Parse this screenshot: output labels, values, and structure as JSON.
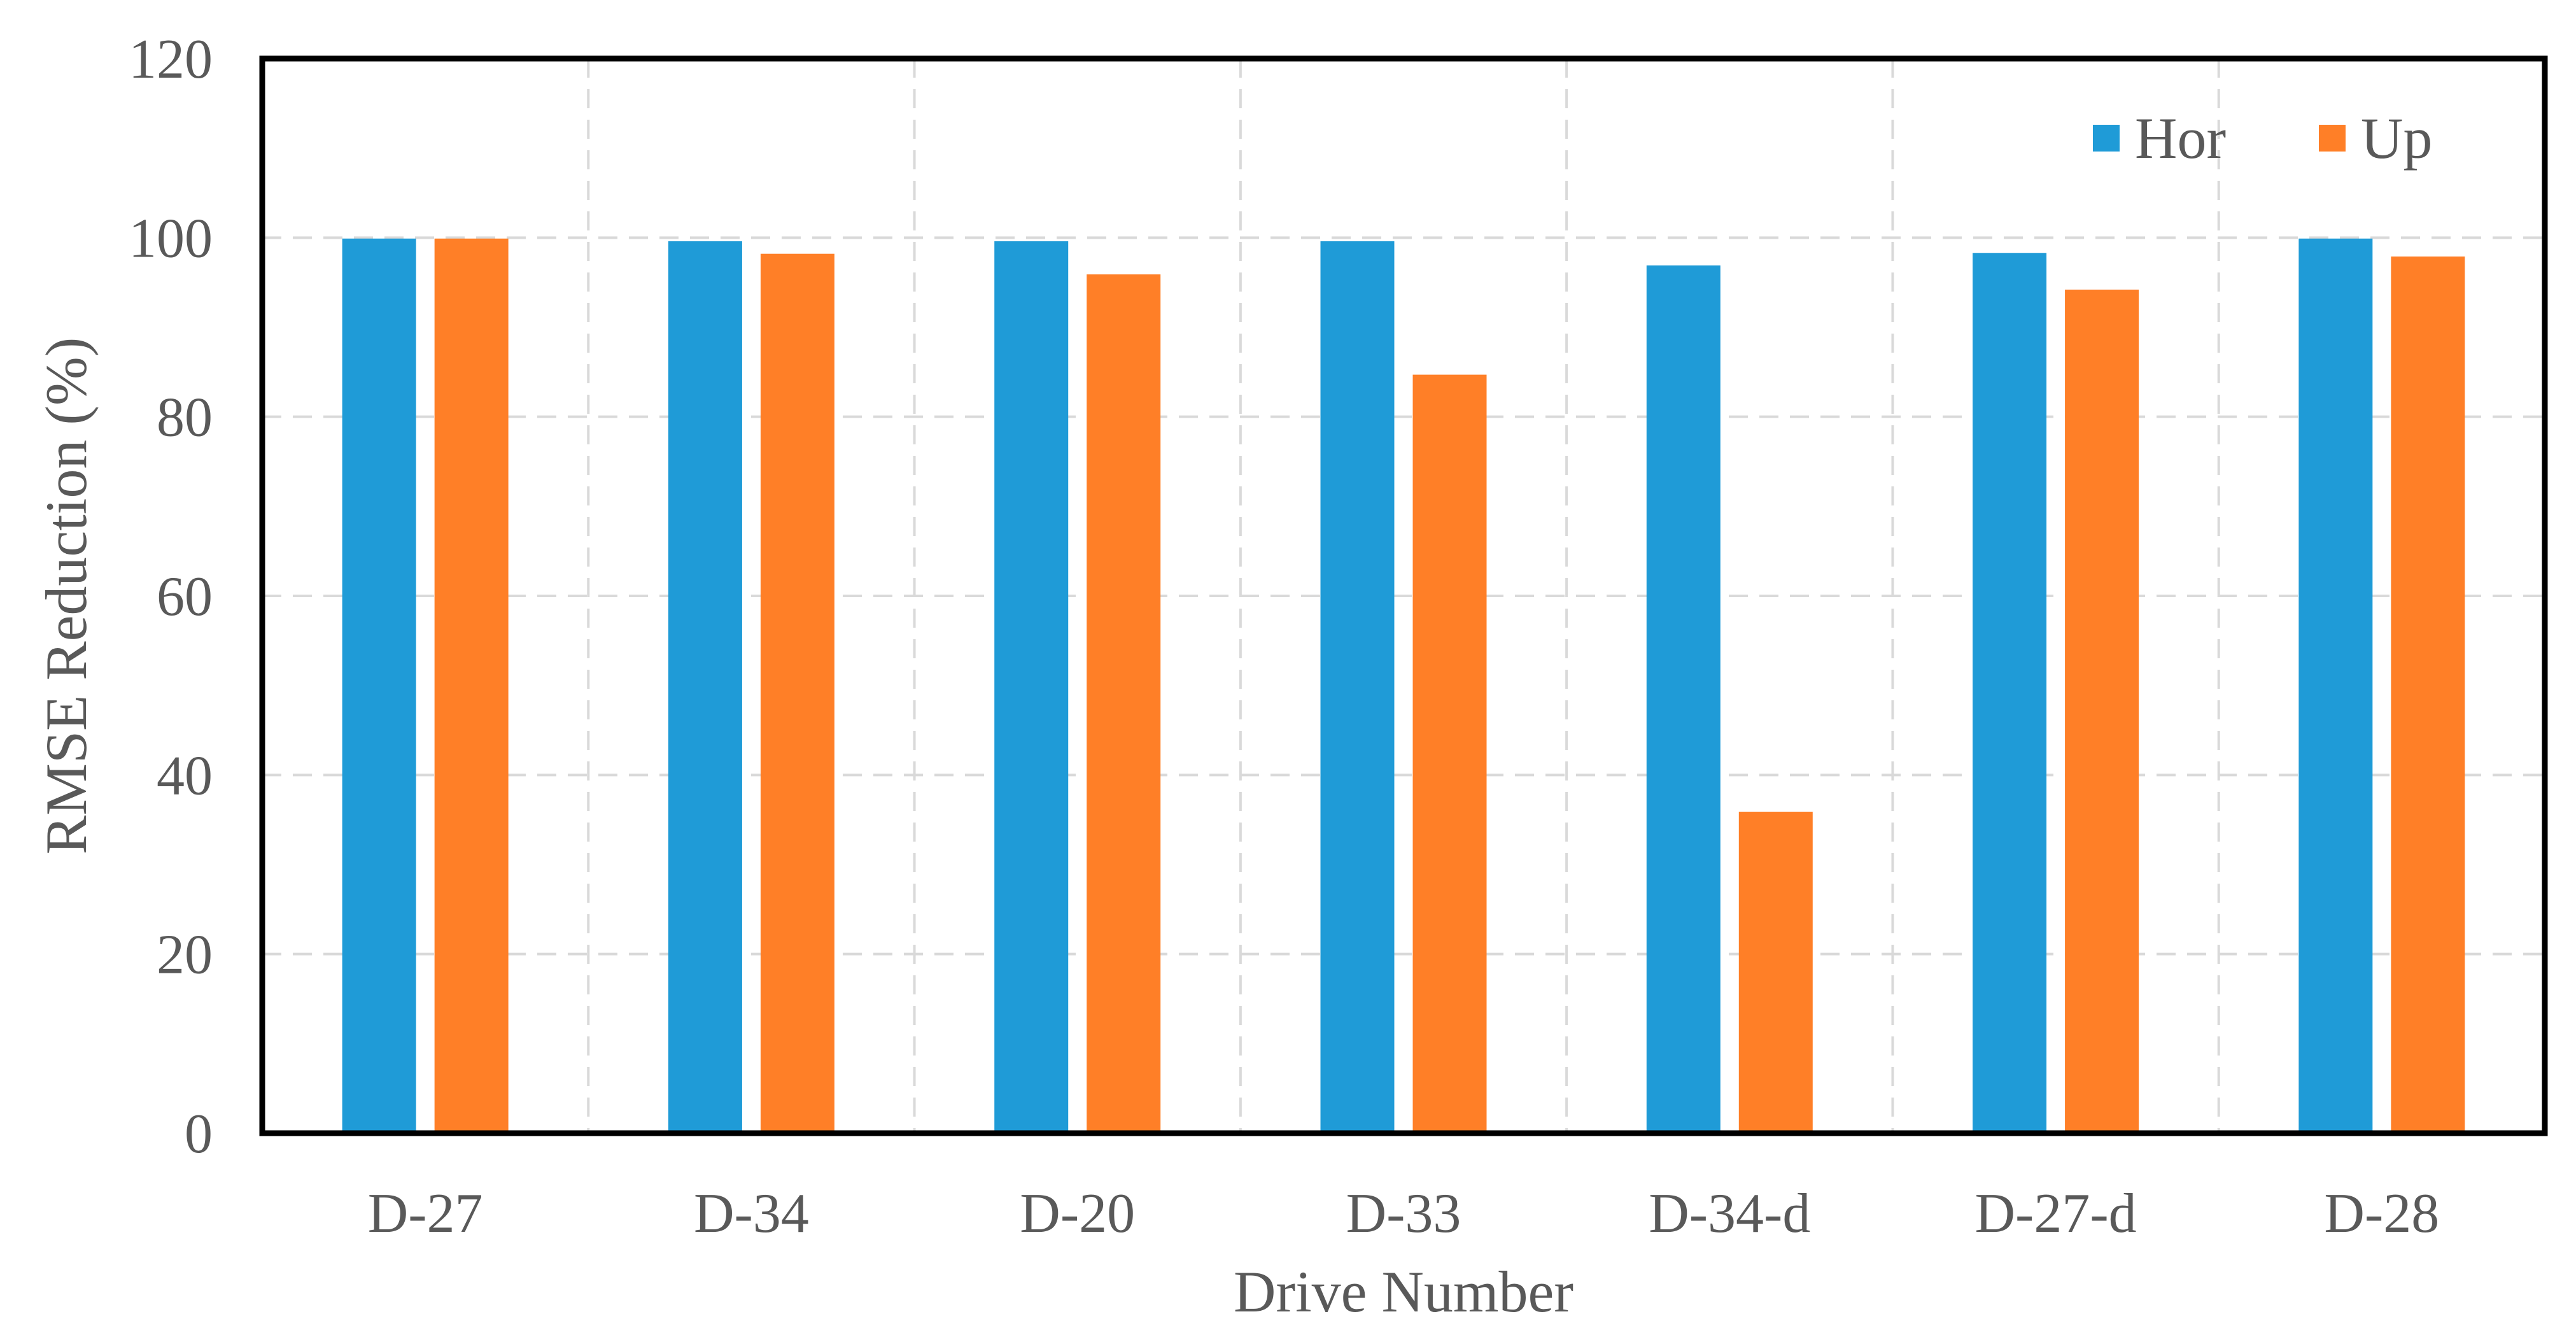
{
  "chart_data": {
    "type": "bar",
    "title": "",
    "xlabel": "Drive Number",
    "ylabel": "RMSE Reduction (%)",
    "ylim": [
      0,
      120
    ],
    "yticks": [
      0,
      20,
      40,
      60,
      80,
      100,
      120
    ],
    "grid": true,
    "legend_position": "top-right",
    "categories": [
      "D-27",
      "D-34",
      "D-20",
      "D-33",
      "D-34-d",
      "D-27-d",
      "D-28"
    ],
    "series": [
      {
        "name": "Hor",
        "color": "#1f9bd7",
        "values": [
          99.9,
          99.6,
          99.6,
          99.6,
          96.9,
          98.3,
          99.9
        ]
      },
      {
        "name": "Up",
        "color": "#ff7f27",
        "values": [
          99.9,
          98.2,
          95.9,
          84.7,
          35.9,
          94.2,
          97.9
        ]
      }
    ]
  }
}
